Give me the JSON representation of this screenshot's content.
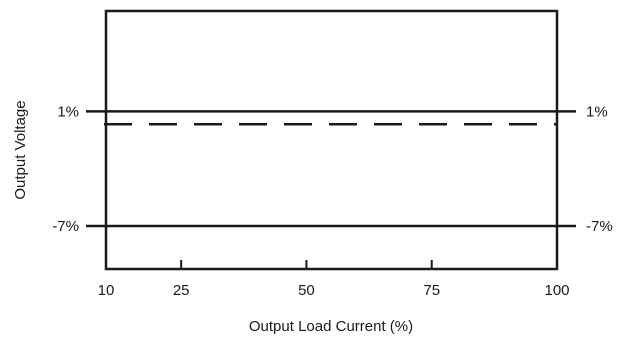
{
  "chart_data": {
    "type": "line",
    "title": "",
    "xlabel": "Output Load Current (%)",
    "ylabel": "Output Voltage",
    "x_ticks": [
      10,
      25,
      50,
      75,
      100
    ],
    "x_tick_labels": [
      "10",
      "25",
      "50",
      "75",
      "100"
    ],
    "xlim": [
      10,
      100
    ],
    "ylim": [
      -10,
      8
    ],
    "y_ticks": [
      1,
      -7
    ],
    "y_tick_labels_left": [
      "1%",
      "-7%"
    ],
    "y_tick_labels_right": [
      "1%",
      "-7%"
    ],
    "series": [
      {
        "style": "solid",
        "x": [
          10,
          100
        ],
        "y": [
          1,
          1
        ]
      },
      {
        "style": "dashed",
        "x": [
          10,
          100
        ],
        "y": [
          0.1,
          0.1
        ]
      },
      {
        "style": "solid",
        "x": [
          10,
          100
        ],
        "y": [
          -7,
          -7
        ]
      }
    ],
    "grid": false,
    "legend": "none"
  }
}
